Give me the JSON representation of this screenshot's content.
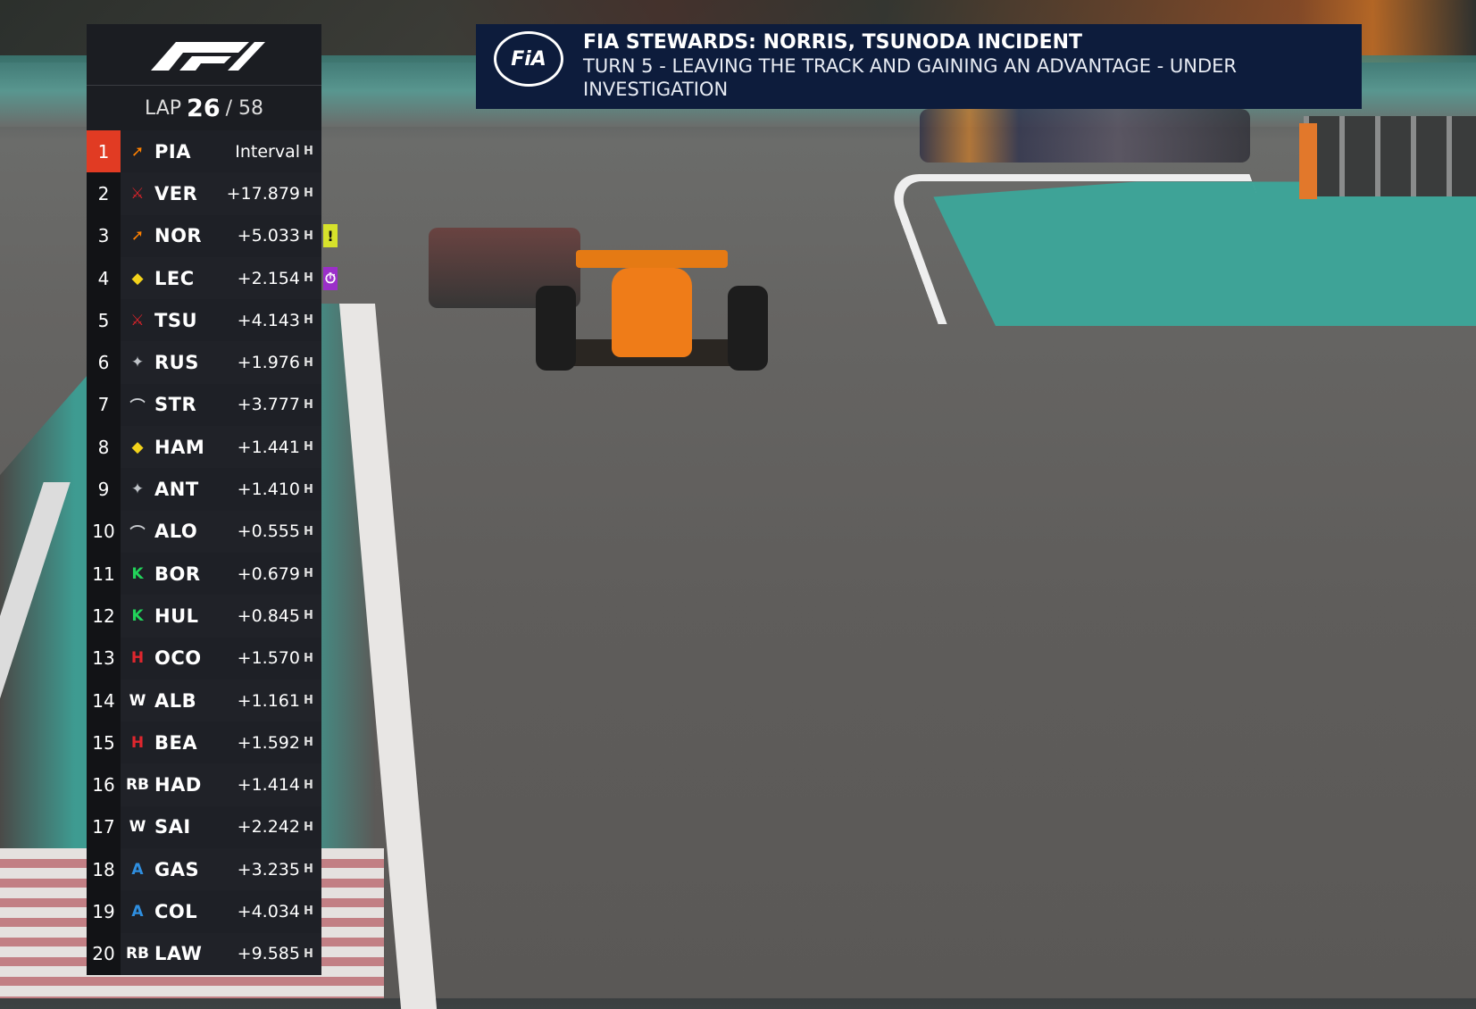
{
  "broadcast": {
    "logo": "F1",
    "lap_label": "LAP",
    "lap_current": "26",
    "lap_total": "/ 58"
  },
  "colors": {
    "leader_highlight": "#e13b23",
    "banner_bg": "#0d1c3c",
    "tower_bg": "#1b1d22",
    "investigation_flag": "#d7e22b",
    "pit_flag": "#9b2fc9"
  },
  "standings": [
    {
      "pos": "1",
      "team": "mclaren",
      "team_icon": "➚",
      "team_color": "#ff8000",
      "driver": "PIA",
      "gap": "Interval",
      "tyre": "H"
    },
    {
      "pos": "2",
      "team": "red-bull",
      "team_icon": "⚔",
      "team_color": "#d8232a",
      "driver": "VER",
      "gap": "+17.879",
      "tyre": "H"
    },
    {
      "pos": "3",
      "team": "mclaren",
      "team_icon": "➚",
      "team_color": "#ff8000",
      "driver": "NOR",
      "gap": "+5.033",
      "tyre": "H",
      "flag": "!",
      "flag_type": "investigation"
    },
    {
      "pos": "4",
      "team": "ferrari",
      "team_icon": "◆",
      "team_color": "#f2d21b",
      "driver": "LEC",
      "gap": "+2.154",
      "tyre": "H",
      "flag": "⏱",
      "flag_type": "stopwatch"
    },
    {
      "pos": "5",
      "team": "racing-bulls",
      "team_icon": "⚔",
      "team_color": "#d8232a",
      "driver": "TSU",
      "gap": "+4.143",
      "tyre": "H"
    },
    {
      "pos": "6",
      "team": "mercedes",
      "team_icon": "✦",
      "team_color": "#bfc3c8",
      "driver": "RUS",
      "gap": "+1.976",
      "tyre": "H"
    },
    {
      "pos": "7",
      "team": "aston-martin",
      "team_icon": "⌒",
      "team_color": "#c9ccd0",
      "driver": "STR",
      "gap": "+3.777",
      "tyre": "H"
    },
    {
      "pos": "8",
      "team": "ferrari",
      "team_icon": "◆",
      "team_color": "#f2d21b",
      "driver": "HAM",
      "gap": "+1.441",
      "tyre": "H"
    },
    {
      "pos": "9",
      "team": "mercedes",
      "team_icon": "✦",
      "team_color": "#bfc3c8",
      "driver": "ANT",
      "gap": "+1.410",
      "tyre": "H"
    },
    {
      "pos": "10",
      "team": "aston-martin",
      "team_icon": "⌒",
      "team_color": "#c9ccd0",
      "driver": "ALO",
      "gap": "+0.555",
      "tyre": "H"
    },
    {
      "pos": "11",
      "team": "kick-sauber",
      "team_icon": "K",
      "team_color": "#22d35a",
      "driver": "BOR",
      "gap": "+0.679",
      "tyre": "H"
    },
    {
      "pos": "12",
      "team": "kick-sauber",
      "team_icon": "K",
      "team_color": "#22d35a",
      "driver": "HUL",
      "gap": "+0.845",
      "tyre": "H"
    },
    {
      "pos": "13",
      "team": "haas",
      "team_icon": "H",
      "team_color": "#e0262e",
      "driver": "OCO",
      "gap": "+1.570",
      "tyre": "H"
    },
    {
      "pos": "14",
      "team": "williams",
      "team_icon": "W",
      "team_color": "#ffffff",
      "driver": "ALB",
      "gap": "+1.161",
      "tyre": "H"
    },
    {
      "pos": "15",
      "team": "haas",
      "team_icon": "H",
      "team_color": "#e0262e",
      "driver": "BEA",
      "gap": "+1.592",
      "tyre": "H"
    },
    {
      "pos": "16",
      "team": "racing-bulls",
      "team_icon": "RB",
      "team_color": "#ffffff",
      "driver": "HAD",
      "gap": "+1.414",
      "tyre": "H"
    },
    {
      "pos": "17",
      "team": "williams",
      "team_icon": "W",
      "team_color": "#ffffff",
      "driver": "SAI",
      "gap": "+2.242",
      "tyre": "H"
    },
    {
      "pos": "18",
      "team": "alpine",
      "team_icon": "A",
      "team_color": "#2f8fe0",
      "driver": "GAS",
      "gap": "+3.235",
      "tyre": "H"
    },
    {
      "pos": "19",
      "team": "alpine",
      "team_icon": "A",
      "team_color": "#2f8fe0",
      "driver": "COL",
      "gap": "+4.034",
      "tyre": "H"
    },
    {
      "pos": "20",
      "team": "racing-bulls",
      "team_icon": "RB",
      "team_color": "#ffffff",
      "driver": "LAW",
      "gap": "+9.585",
      "tyre": "H"
    }
  ],
  "banner": {
    "logo": "FIA",
    "title": "FIA STEWARDS: NORRIS, TSUNODA INCIDENT",
    "subtitle": "TURN 5 - LEAVING THE TRACK AND GAINING AN ADVANTAGE - UNDER INVESTIGATION"
  }
}
